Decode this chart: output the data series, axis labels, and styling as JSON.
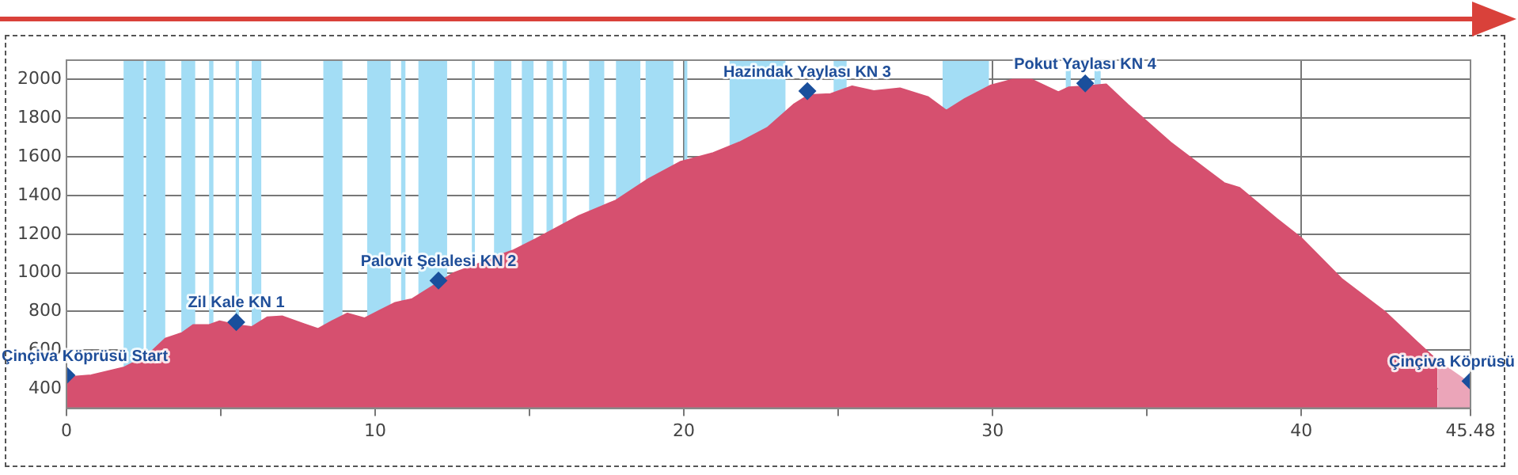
{
  "chart_data": {
    "type": "area",
    "xlim": [
      0,
      45.48
    ],
    "ylim": [
      300,
      2100
    ],
    "xticks": [
      0,
      {
        "value": 5,
        "label": null
      },
      10,
      {
        "value": 15,
        "label": null
      },
      20,
      {
        "value": 25,
        "label": null
      },
      30,
      {
        "value": 35,
        "label": null
      },
      40,
      45.48
    ],
    "yticks": [
      400,
      600,
      800,
      1000,
      1200,
      1400,
      1600,
      1800,
      2000
    ],
    "grid": true,
    "series": [
      {
        "color": "#d6506f",
        "x": [
          0,
          0.8,
          1.85,
          2.6,
          3.2,
          3.75,
          4.1,
          4.6,
          4.96,
          5.5,
          6.0,
          6.5,
          7.0,
          7.7,
          8.15,
          8.6,
          9.1,
          9.65,
          10.15,
          10.65,
          11.2,
          12.05,
          12.55,
          13.4,
          14.0,
          14.45,
          15.2,
          16.6,
          17.8,
          18.85,
          19.9,
          20.95,
          21.8,
          22.7,
          23.55,
          24.05,
          24.75,
          25.45,
          26.15,
          27.0,
          27.9,
          28.5,
          29.1,
          29.95,
          30.65,
          31.26,
          32.13,
          32.47,
          32.99,
          33.68,
          34.38,
          35.76,
          37.5,
          38.0,
          39.2,
          40,
          41.3,
          42.7,
          43.7,
          44.41
        ],
        "values": [
          460,
          470,
          510,
          570,
          660,
          690,
          730,
          730,
          750,
          730,
          720,
          770,
          775,
          735,
          710,
          750,
          790,
          765,
          805,
          845,
          865,
          950,
          1000,
          1050,
          1090,
          1115,
          1175,
          1295,
          1375,
          1485,
          1575,
          1620,
          1675,
          1750,
          1870,
          1920,
          1925,
          1965,
          1940,
          1955,
          1910,
          1840,
          1900,
          1970,
          2000,
          2000,
          1935,
          1960,
          1965,
          1975,
          1870,
          1675,
          1465,
          1440,
          1280,
          1180,
          970,
          800,
          650,
          545
        ]
      },
      {
        "color": "#eba5b9",
        "x": [
          44.41,
          45.48
        ],
        "values": [
          545,
          425
        ]
      },
      {
        "type": "scatter",
        "marker": "diamond",
        "color": "#1a4f9c",
        "x": [
          0,
          5.5,
          12.05,
          24.0,
          33.0,
          45.48
        ],
        "values": [
          470,
          745,
          960,
          1940,
          1980,
          440
        ]
      }
    ],
    "annotations": [
      {
        "text": "Çinçiva Köprüsü Start",
        "x": 0,
        "y": 470
      },
      {
        "text": "Zil Kale KN 1",
        "x": 5.5,
        "y": 745
      },
      {
        "text": "Palovit Şelalesi KN 2",
        "x": 12.05,
        "y": 960
      },
      {
        "text": "Hazindak Yaylası KN 3",
        "x": 24.0,
        "y": 1940
      },
      {
        "text": "Pokut Yaylası KN 4",
        "x": 33.0,
        "y": 1980
      },
      {
        "text": "Çinçiva Köprüsü",
        "x": 45.48,
        "y": 440
      }
    ],
    "bands": [
      {
        "axis": "x",
        "from": 1.85,
        "to": 2.5,
        "color": "#a3ddf5"
      },
      {
        "axis": "x",
        "from": 2.58,
        "to": 3.2,
        "color": "#a3ddf5"
      },
      {
        "axis": "x",
        "from": 3.72,
        "to": 4.17,
        "color": "#a3ddf5"
      },
      {
        "axis": "x",
        "from": 4.62,
        "to": 4.76,
        "color": "#a3ddf5"
      },
      {
        "axis": "x",
        "from": 5.48,
        "to": 5.59,
        "color": "#a3ddf5"
      },
      {
        "axis": "x",
        "from": 6.0,
        "to": 6.31,
        "color": "#a3ddf5"
      },
      {
        "axis": "x",
        "from": 8.32,
        "to": 8.94,
        "color": "#a3ddf5"
      },
      {
        "axis": "x",
        "from": 9.74,
        "to": 10.5,
        "color": "#a3ddf5"
      },
      {
        "axis": "x",
        "from": 10.84,
        "to": 10.98,
        "color": "#a3ddf5"
      },
      {
        "axis": "x",
        "from": 11.4,
        "to": 12.33,
        "color": "#a3ddf5"
      },
      {
        "axis": "x",
        "from": 13.13,
        "to": 13.23,
        "color": "#a3ddf5"
      },
      {
        "axis": "x",
        "from": 13.85,
        "to": 14.41,
        "color": "#a3ddf5"
      },
      {
        "axis": "x",
        "from": 14.75,
        "to": 15.13,
        "color": "#a3ddf5"
      },
      {
        "axis": "x",
        "from": 15.55,
        "to": 15.76,
        "color": "#a3ddf5"
      },
      {
        "axis": "x",
        "from": 16.07,
        "to": 16.2,
        "color": "#a3ddf5"
      },
      {
        "axis": "x",
        "from": 16.93,
        "to": 17.42,
        "color": "#a3ddf5"
      },
      {
        "axis": "x",
        "from": 17.8,
        "to": 18.59,
        "color": "#a3ddf5"
      },
      {
        "axis": "x",
        "from": 18.76,
        "to": 19.66,
        "color": "#a3ddf5"
      },
      {
        "axis": "x",
        "from": 20.01,
        "to": 20.11,
        "color": "#a3ddf5"
      },
      {
        "axis": "x",
        "from": 21.48,
        "to": 23.29,
        "color": "#a3ddf5"
      },
      {
        "axis": "x",
        "from": 24.85,
        "to": 25.27,
        "color": "#a3ddf5"
      },
      {
        "axis": "x",
        "from": 28.38,
        "to": 29.88,
        "color": "#a3ddf5"
      },
      {
        "axis": "x",
        "from": 32.37,
        "to": 32.53,
        "color": "#a3ddf5"
      },
      {
        "axis": "x",
        "from": 33.3,
        "to": 33.5,
        "color": "#a3ddf5"
      }
    ]
  }
}
